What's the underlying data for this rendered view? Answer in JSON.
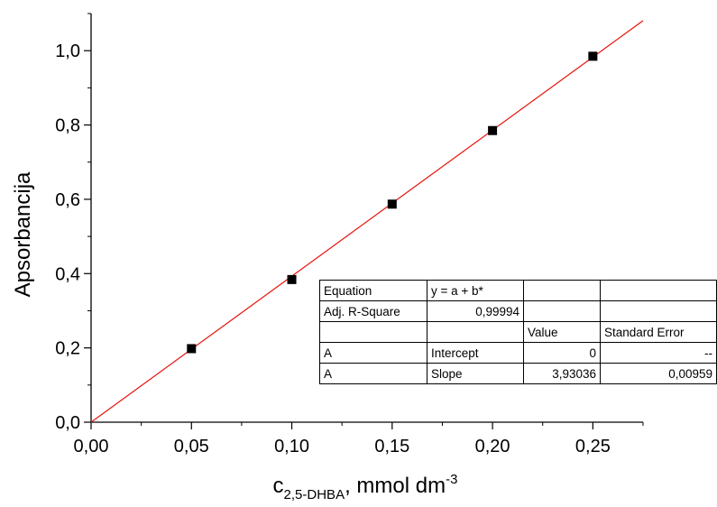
{
  "chart_data": {
    "type": "scatter",
    "xlabel": {
      "main": "c",
      "sub": "2,5-DHBA",
      "rest": ", mmol dm",
      "sup": "-3"
    },
    "ylabel": "Apsorbancija",
    "xlim": [
      0,
      0.275
    ],
    "ylim": [
      0,
      1.1
    ],
    "x_ticks": [
      "0,00",
      "0,05",
      "0,10",
      "0,15",
      "0,20",
      "0,25"
    ],
    "x_tick_values": [
      0,
      0.05,
      0.1,
      0.15,
      0.2,
      0.25
    ],
    "y_ticks": [
      "0,0",
      "0,2",
      "0,4",
      "0,6",
      "0,8",
      "1,0"
    ],
    "y_tick_values": [
      0,
      0.2,
      0.4,
      0.6,
      0.8,
      1.0
    ],
    "series": [
      {
        "x": [
          0.05,
          0.1,
          0.15,
          0.2,
          0.25
        ],
        "y": [
          0.198,
          0.384,
          0.587,
          0.785,
          0.985
        ],
        "color": "#000000",
        "marker": "square"
      }
    ],
    "fit_line": {
      "intercept": 0,
      "slope": 3.93036,
      "color": "#e8140f"
    },
    "grid": false
  },
  "fit_table": {
    "rows": [
      [
        "Equation",
        "y = a + b*",
        "",
        ""
      ],
      [
        "Adj. R-Square",
        "0,99994",
        "",
        ""
      ],
      [
        "",
        "",
        "Value",
        "Standard Error"
      ],
      [
        "A",
        "Intercept",
        "0",
        "--"
      ],
      [
        "A",
        "Slope",
        "3,93036",
        "0,00959"
      ]
    ]
  }
}
